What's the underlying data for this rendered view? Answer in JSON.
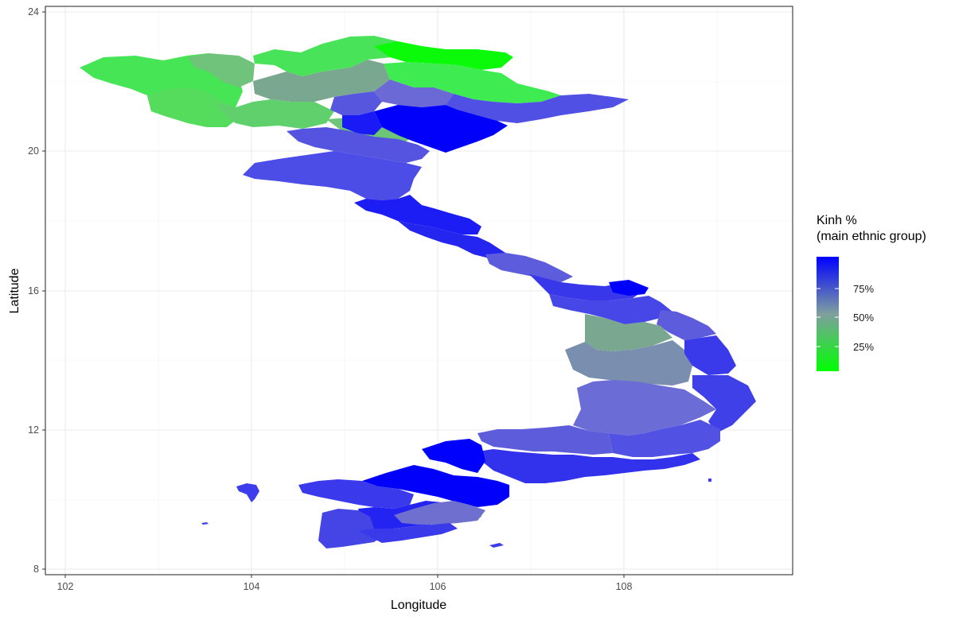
{
  "chart": {
    "xlabel": "Longitude",
    "ylabel": "Latitude",
    "x_ticks": [
      "102",
      "104",
      "106",
      "108"
    ],
    "y_ticks": [
      "8",
      "12",
      "16",
      "20",
      "24"
    ]
  },
  "legend": {
    "title_line1": "Kinh %",
    "title_line2": "(main ethnic group)",
    "labels": [
      "75%",
      "50%",
      "25%"
    ]
  },
  "colors": {
    "low": "#00ff00",
    "mid": "#7f9f9f",
    "high": "#0000ff"
  },
  "chart_data": {
    "type": "choropleth",
    "region": "Vietnam provinces",
    "fill_variable": "Kinh share of population (%)",
    "fill_scale": {
      "low_color": "#00ff00",
      "high_color": "#0000ff",
      "breaks": [
        25,
        50,
        75
      ]
    },
    "xlim": [
      101.8,
      109.7
    ],
    "ylim": [
      7.9,
      24.1
    ],
    "grid": true
  }
}
